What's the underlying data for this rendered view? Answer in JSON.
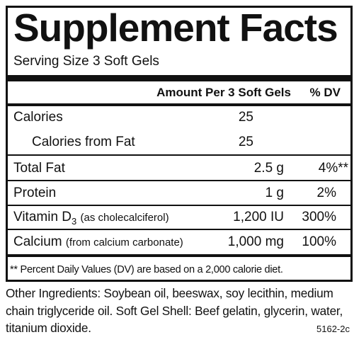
{
  "header": {
    "title": "Supplement Facts",
    "serving_size": "Serving Size 3 Soft Gels"
  },
  "table": {
    "columns": {
      "amount": "Amount Per 3 Soft Gels",
      "dv": "% DV"
    },
    "rows": [
      {
        "label": "Calories",
        "amount": "25"
      },
      {
        "label": "Calories from Fat",
        "amount": "25"
      },
      {
        "label": "Total Fat",
        "amount": "2.5 g",
        "dv": "4%**"
      },
      {
        "label": "Protein",
        "amount": "1 g",
        "dv": "2%"
      },
      {
        "label": "Vitamin D",
        "subscript": "3",
        "note": "(as cholecalciferol)",
        "amount": "1,200 IU",
        "dv": "300%"
      },
      {
        "label": "Calcium",
        "note": "(from calcium carbonate)",
        "amount": "1,000 mg",
        "dv": "100%"
      }
    ],
    "footnote": "** Percent Daily Values (DV) are based on a 2,000 calorie diet."
  },
  "other_ingredients": "Other Ingredients: Soybean oil, beeswax, soy lecithin, medium chain triglyceride oil. Soft Gel Shell: Beef gelatin, glycerin, water, titanium dioxide.",
  "code": "5162-2c"
}
